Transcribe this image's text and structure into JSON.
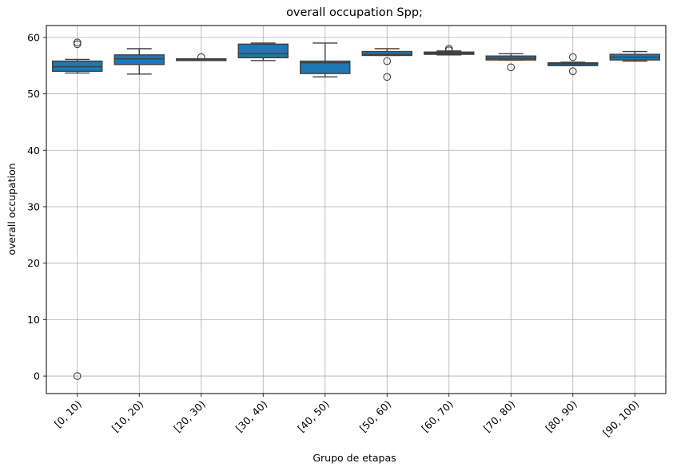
{
  "chart_data": {
    "type": "box",
    "title": "overall occupation Spp;",
    "xlabel": "Grupo de etapas",
    "ylabel": "overall occupation",
    "ylim": [
      -3.1,
      62.1
    ],
    "yticks": [
      0,
      10,
      20,
      30,
      40,
      50,
      60
    ],
    "grid": true,
    "box_color": "#1f77b4",
    "categories": [
      "[0, 10)",
      "[10, 20)",
      "[20, 30)",
      "[30, 40)",
      "[40, 50)",
      "[50, 60)",
      "[60, 70)",
      "[70, 80)",
      "[80, 90)",
      "[90, 100)"
    ],
    "boxes": [
      {
        "q1": 54.0,
        "median": 54.8,
        "q3": 55.8,
        "whisker_low": 53.7,
        "whisker_high": 56.1,
        "outliers": [
          58.8,
          59.1,
          0.0
        ]
      },
      {
        "q1": 55.2,
        "median": 56.2,
        "q3": 56.9,
        "whisker_low": 53.5,
        "whisker_high": 58.0,
        "outliers": []
      },
      {
        "q1": 55.9,
        "median": 56.0,
        "q3": 56.2,
        "whisker_low": 55.9,
        "whisker_high": 56.2,
        "outliers": [
          56.5
        ]
      },
      {
        "q1": 56.4,
        "median": 57.1,
        "q3": 58.8,
        "whisker_low": 55.9,
        "whisker_high": 59.0,
        "outliers": []
      },
      {
        "q1": 53.6,
        "median": 55.5,
        "q3": 55.8,
        "whisker_low": 53.0,
        "whisker_high": 59.0,
        "outliers": []
      },
      {
        "q1": 56.8,
        "median": 57.0,
        "q3": 57.5,
        "whisker_low": 56.8,
        "whisker_high": 58.0,
        "outliers": [
          55.8,
          53.0
        ]
      },
      {
        "q1": 57.0,
        "median": 57.2,
        "q3": 57.4,
        "whisker_low": 56.9,
        "whisker_high": 57.6,
        "outliers": [
          58.0,
          57.7
        ]
      },
      {
        "q1": 56.0,
        "median": 56.3,
        "q3": 56.7,
        "whisker_low": 56.0,
        "whisker_high": 57.1,
        "outliers": [
          54.7
        ]
      },
      {
        "q1": 55.0,
        "median": 55.3,
        "q3": 55.5,
        "whisker_low": 55.0,
        "whisker_high": 55.6,
        "outliers": [
          56.5,
          54.0
        ]
      },
      {
        "q1": 56.0,
        "median": 56.5,
        "q3": 57.0,
        "whisker_low": 55.8,
        "whisker_high": 57.5,
        "outliers": []
      }
    ]
  }
}
